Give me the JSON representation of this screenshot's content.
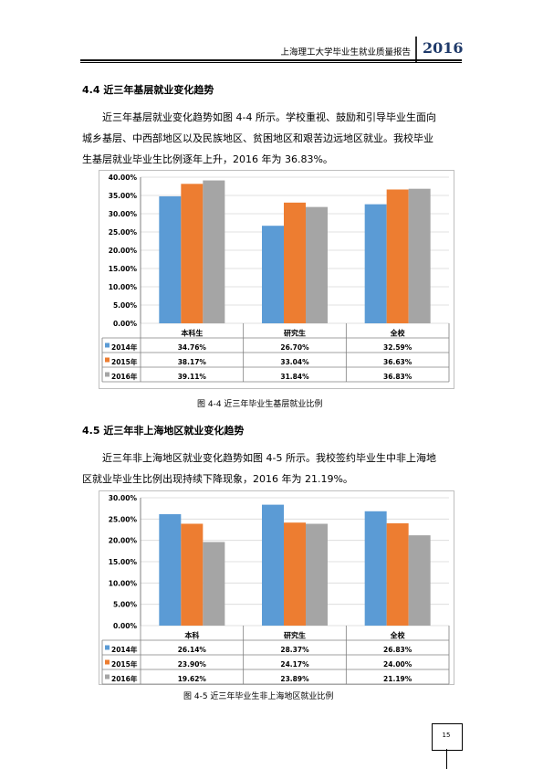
{
  "header": {
    "title": "上海理工大学毕业生就业质量报告",
    "year": "2016"
  },
  "section1": {
    "heading": "4.4  近三年基层就业变化趋势",
    "lines": [
      "近三年基层就业变化趋势如图 4-4 所示。学校重视、鼓励和引导毕业生面向",
      "城乡基层、中西部地区以及民族地区、贫困地区和艰苦边远地区就业。我校毕业",
      "生基层就业毕业生比例逐年上升，2016 年为 36.83%。"
    ]
  },
  "section2": {
    "heading": "4.5  近三年非上海地区就业变化趋势",
    "lines": [
      "近三年非上海地区就业变化趋势如图 4-5 所示。我校签约毕业生中非上海地",
      "区就业毕业生比例出现持续下降现象，2016 年为 21.19%。"
    ]
  },
  "chart_data": [
    {
      "type": "bar",
      "title": "",
      "caption": "图 4-4   近三年毕业生基层就业比例",
      "categories": [
        "本科生",
        "研究生",
        "全校"
      ],
      "series": [
        {
          "name": "2014年",
          "values": [
            34.76,
            26.7,
            32.59
          ],
          "labels": [
            "34.76%",
            "26.70%",
            "32.59%"
          ],
          "color": "#5b9bd5"
        },
        {
          "name": "2015年",
          "values": [
            38.17,
            33.04,
            36.63
          ],
          "labels": [
            "38.17%",
            "33.04%",
            "36.63%"
          ],
          "color": "#ed7d31"
        },
        {
          "name": "2016年",
          "values": [
            39.11,
            31.84,
            36.83
          ],
          "labels": [
            "39.11%",
            "31.84%",
            "36.83%"
          ],
          "color": "#a5a5a5"
        }
      ],
      "ylim": [
        0,
        40
      ],
      "yticks": [
        "0.00%",
        "5.00%",
        "10.00%",
        "15.00%",
        "20.00%",
        "25.00%",
        "30.00%",
        "35.00%",
        "40.00%"
      ],
      "grid": true,
      "legend": "data-table"
    },
    {
      "type": "bar",
      "title": "",
      "caption": "图 4-5   近三年毕业生非上海地区就业比例",
      "categories": [
        "本科",
        "研究生",
        "全校"
      ],
      "series": [
        {
          "name": "2014年",
          "values": [
            26.14,
            28.37,
            26.83
          ],
          "labels": [
            "26.14%",
            "28.37%",
            "26.83%"
          ],
          "color": "#5b9bd5"
        },
        {
          "name": "2015年",
          "values": [
            23.9,
            24.17,
            24.0
          ],
          "labels": [
            "23.90%",
            "24.17%",
            "24.00%"
          ],
          "color": "#ed7d31"
        },
        {
          "name": "2016年",
          "values": [
            19.62,
            23.89,
            21.19
          ],
          "labels": [
            "19.62%",
            "23.89%",
            "21.19%"
          ],
          "color": "#a5a5a5"
        }
      ],
      "ylim": [
        0,
        30
      ],
      "yticks": [
        "0.00%",
        "5.00%",
        "10.00%",
        "15.00%",
        "20.00%",
        "25.00%",
        "30.00%"
      ],
      "grid": true,
      "legend": "data-table"
    }
  ],
  "page_number": "15"
}
